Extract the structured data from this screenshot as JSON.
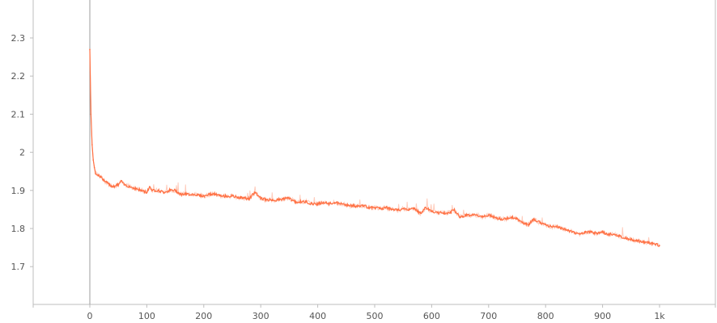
{
  "chart_data": {
    "type": "line",
    "title": "",
    "xlabel": "",
    "ylabel": "",
    "xlim": [
      -100,
      1100
    ],
    "ylim": [
      1.6,
      2.4
    ],
    "x_ticks": [
      0,
      100,
      200,
      300,
      400,
      500,
      600,
      700,
      800,
      900,
      1000
    ],
    "x_tick_labels": [
      "0",
      "100",
      "200",
      "300",
      "400",
      "500",
      "600",
      "700",
      "800",
      "900",
      "1k"
    ],
    "y_ticks": [
      1.7,
      1.8,
      1.9,
      2.0,
      2.1,
      2.2,
      2.3
    ],
    "y_tick_labels": [
      "1.7",
      "1.8",
      "1.9",
      "2",
      "2.1",
      "2.2",
      "2.3"
    ],
    "grid": false,
    "legend": "none",
    "series": [
      {
        "color": "#ff7043",
        "raw_color": "#ffccbc",
        "x": [
          0,
          2,
          4,
          6,
          8,
          10,
          15,
          20,
          25,
          30,
          40,
          50,
          55,
          60,
          70,
          80,
          90,
          100,
          105,
          110,
          120,
          130,
          140,
          150,
          160,
          170,
          180,
          190,
          200,
          210,
          220,
          230,
          240,
          250,
          260,
          270,
          280,
          290,
          300,
          310,
          320,
          330,
          340,
          350,
          360,
          370,
          380,
          390,
          400,
          410,
          420,
          430,
          440,
          450,
          460,
          470,
          480,
          490,
          500,
          510,
          520,
          530,
          540,
          550,
          560,
          570,
          580,
          590,
          600,
          610,
          620,
          630,
          640,
          650,
          660,
          670,
          680,
          690,
          700,
          710,
          720,
          730,
          740,
          750,
          760,
          770,
          780,
          790,
          800,
          810,
          820,
          830,
          840,
          850,
          860,
          870,
          880,
          890,
          900,
          910,
          920,
          930,
          940,
          950,
          960,
          970,
          980,
          990,
          1000
        ],
        "y": [
          2.27,
          2.1,
          2.02,
          1.98,
          1.96,
          1.945,
          1.94,
          1.935,
          1.925,
          1.92,
          1.91,
          1.915,
          1.925,
          1.915,
          1.91,
          1.905,
          1.9,
          1.895,
          1.91,
          1.9,
          1.9,
          1.895,
          1.9,
          1.9,
          1.89,
          1.89,
          1.89,
          1.888,
          1.885,
          1.89,
          1.89,
          1.885,
          1.885,
          1.885,
          1.882,
          1.88,
          1.878,
          1.895,
          1.88,
          1.875,
          1.875,
          1.875,
          1.878,
          1.88,
          1.87,
          1.87,
          1.87,
          1.865,
          1.865,
          1.868,
          1.865,
          1.868,
          1.865,
          1.862,
          1.86,
          1.858,
          1.86,
          1.855,
          1.855,
          1.852,
          1.855,
          1.85,
          1.848,
          1.852,
          1.85,
          1.852,
          1.84,
          1.855,
          1.845,
          1.842,
          1.84,
          1.842,
          1.848,
          1.83,
          1.835,
          1.835,
          1.835,
          1.83,
          1.835,
          1.83,
          1.825,
          1.825,
          1.83,
          1.825,
          1.815,
          1.81,
          1.825,
          1.815,
          1.81,
          1.805,
          1.805,
          1.8,
          1.795,
          1.79,
          1.785,
          1.79,
          1.79,
          1.788,
          1.79,
          1.785,
          1.785,
          1.78,
          1.775,
          1.772,
          1.768,
          1.765,
          1.763,
          1.76,
          1.755
        ]
      }
    ]
  }
}
